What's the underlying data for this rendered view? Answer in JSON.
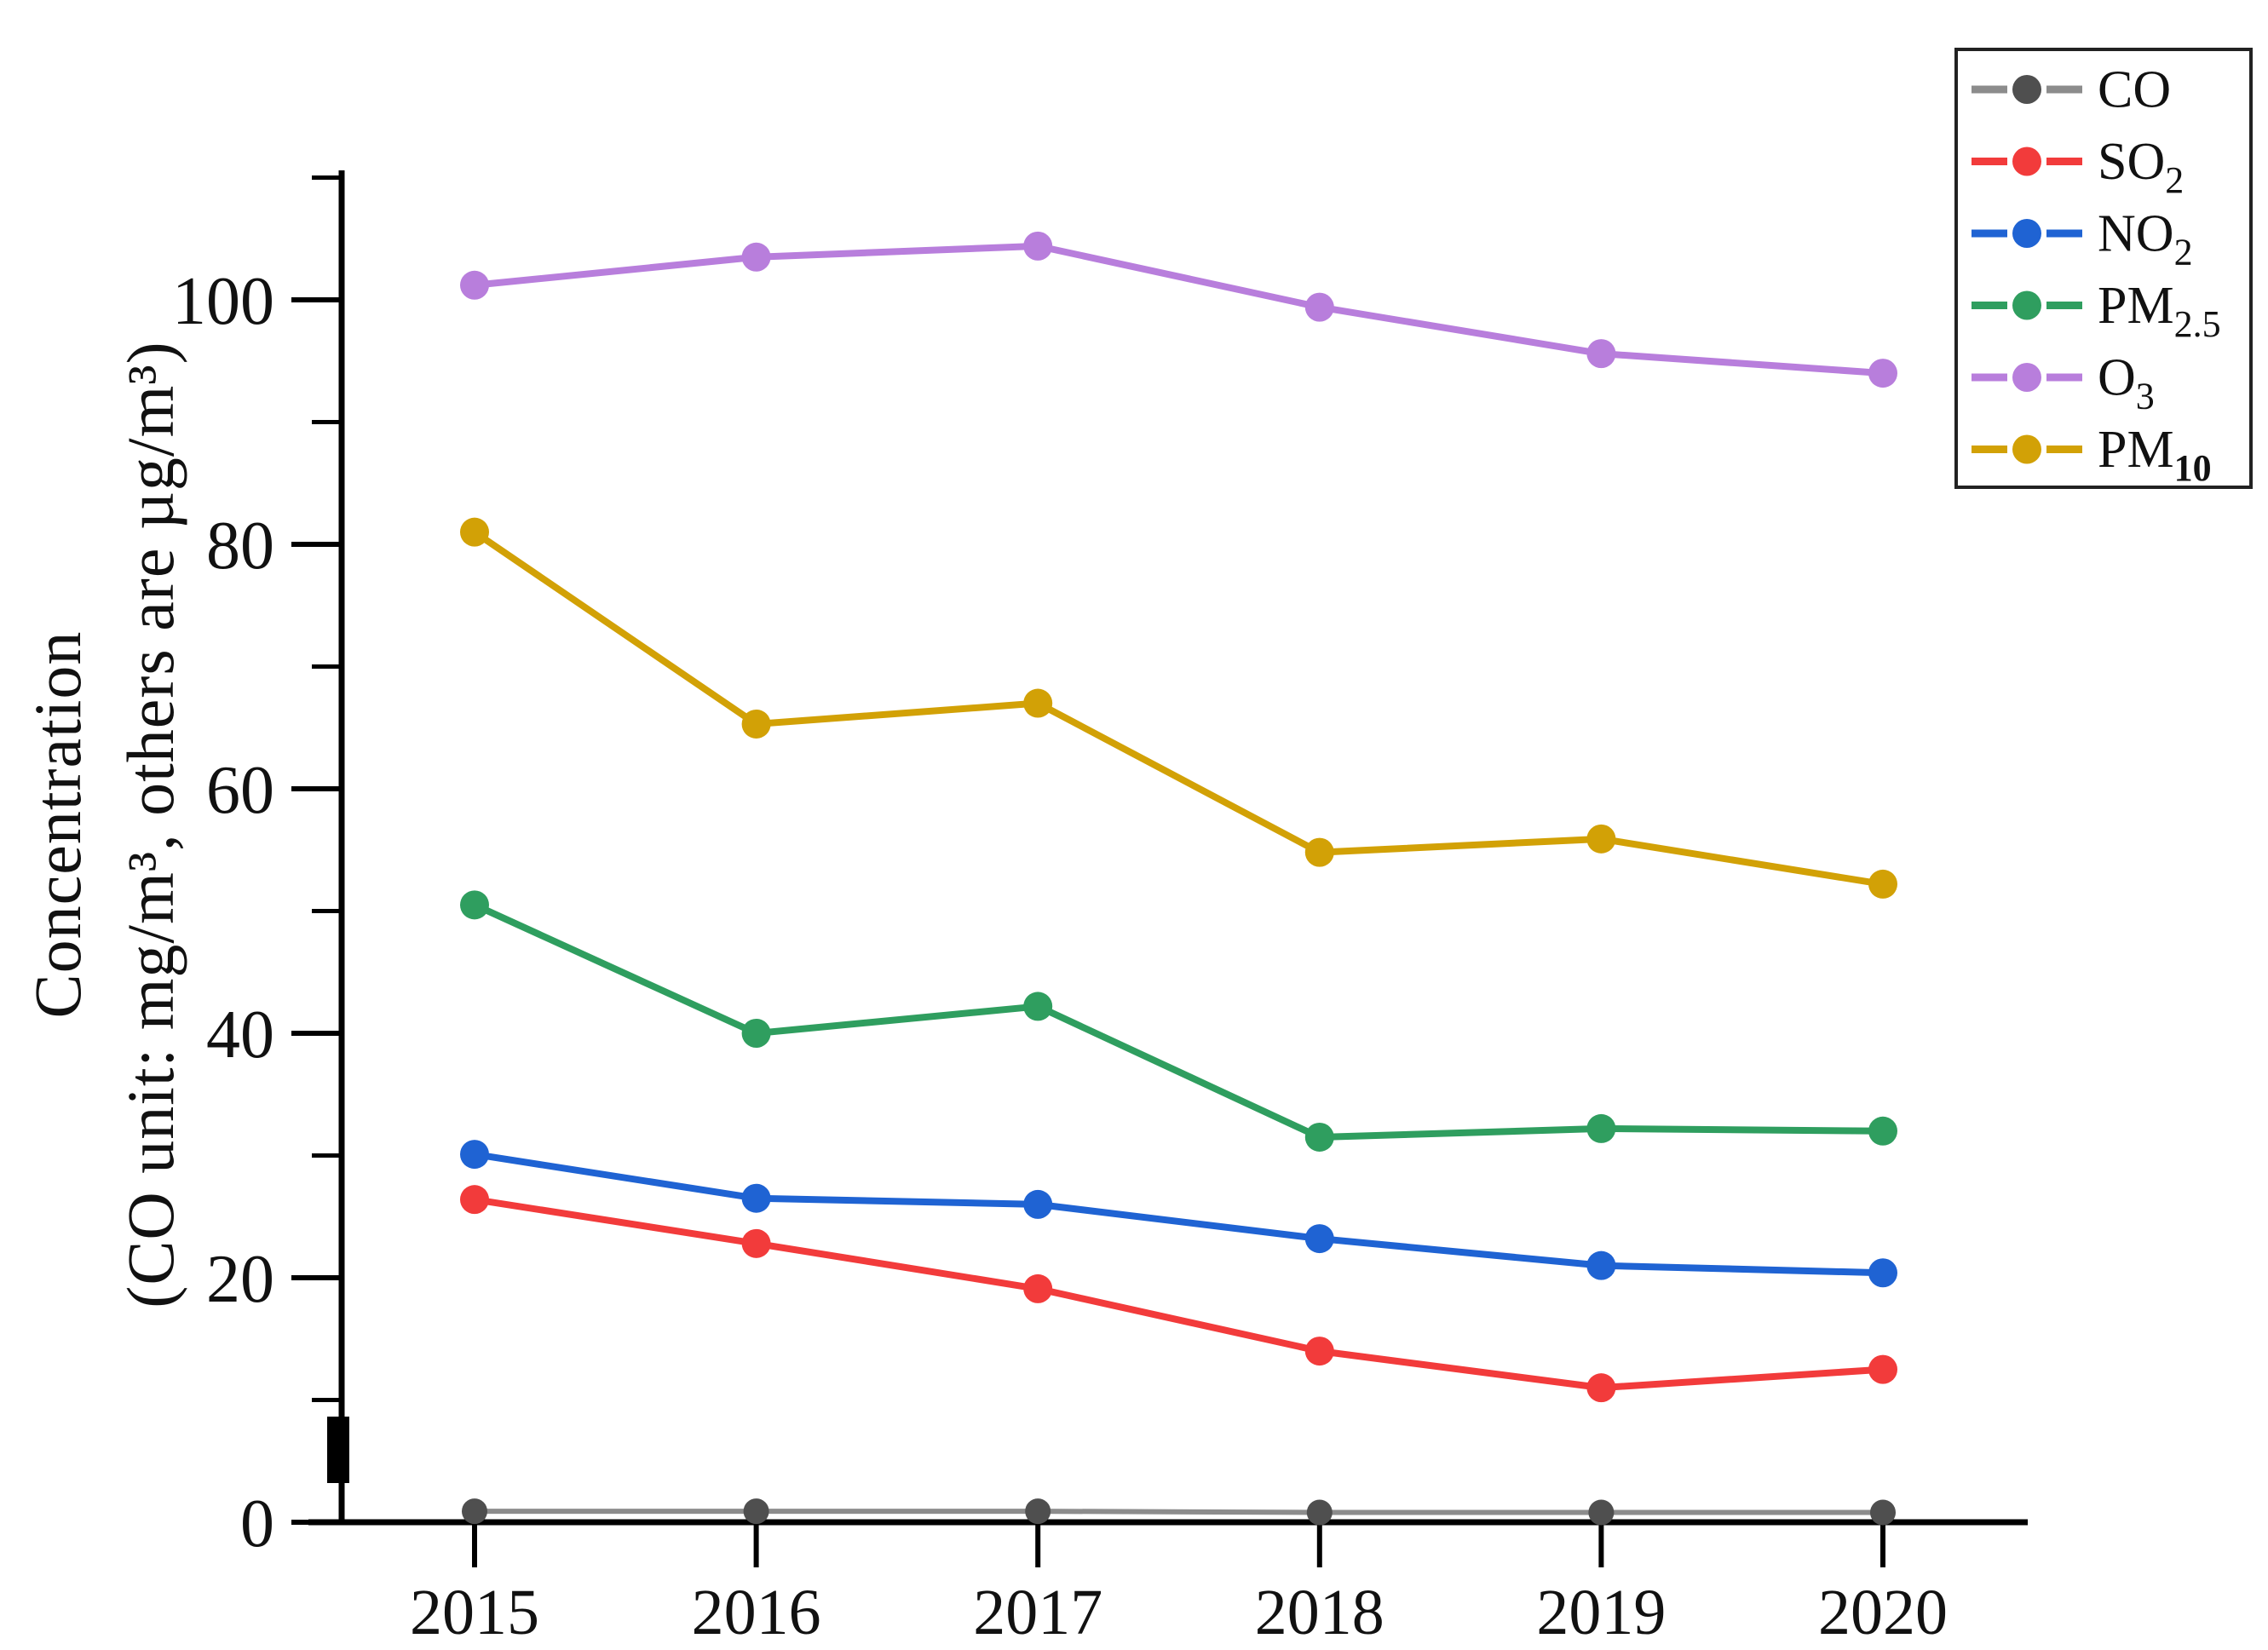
{
  "chart_data": {
    "type": "line",
    "title": "",
    "xlabel": "",
    "ylabel_lines": [
      "Concentration",
      "(CO unit: mg/m³, others are µg/m³)"
    ],
    "x": [
      2015,
      2016,
      2017,
      2018,
      2019,
      2020
    ],
    "series": [
      {
        "name": "CO",
        "label_base": "CO",
        "label_sub": "",
        "sub_bold": false,
        "color": "#4f4f4f",
        "line_color": "#8c8c8c",
        "values": [
          0.9,
          0.9,
          0.9,
          0.8,
          0.8,
          0.8
        ]
      },
      {
        "name": "SO2",
        "label_base": "SO",
        "label_sub": "2",
        "sub_bold": false,
        "color": "#f23b3b",
        "line_color": "#f23b3b",
        "values": [
          26.4,
          22.8,
          19.1,
          14.0,
          11.0,
          12.5
        ]
      },
      {
        "name": "NO2",
        "label_base": "NO",
        "label_sub": "2",
        "sub_bold": false,
        "color": "#1f63d3",
        "line_color": "#1f63d3",
        "values": [
          30.1,
          26.5,
          26.0,
          23.2,
          21.0,
          20.4
        ]
      },
      {
        "name": "PM2.5",
        "label_base": "PM",
        "label_sub": "2.5",
        "sub_bold": false,
        "color": "#2f9e5f",
        "line_color": "#2f9e5f",
        "values": [
          50.5,
          40.0,
          42.2,
          31.5,
          32.2,
          32.0
        ]
      },
      {
        "name": "O3",
        "label_base": "O",
        "label_sub": "3",
        "sub_bold": false,
        "color": "#b87edc",
        "line_color": "#b87edc",
        "values": [
          101.2,
          103.5,
          104.4,
          99.4,
          95.6,
          94.0
        ]
      },
      {
        "name": "PM10",
        "label_base": "PM",
        "label_sub": "10",
        "sub_bold": true,
        "color": "#d2a106",
        "line_color": "#d2a106",
        "values": [
          81.0,
          65.3,
          67.0,
          54.8,
          55.9,
          52.2
        ]
      }
    ],
    "yticks_major": [
      0,
      20,
      40,
      60,
      80,
      100
    ],
    "yticks_minor": [
      10,
      30,
      50,
      70,
      90,
      110
    ],
    "ylim": [
      0,
      110.5
    ],
    "grid": false,
    "legend_position": "top-right",
    "has_axis_break_mark": true,
    "axis_color": "#000000",
    "text_color": "#111111",
    "background_color": "#ffffff"
  }
}
